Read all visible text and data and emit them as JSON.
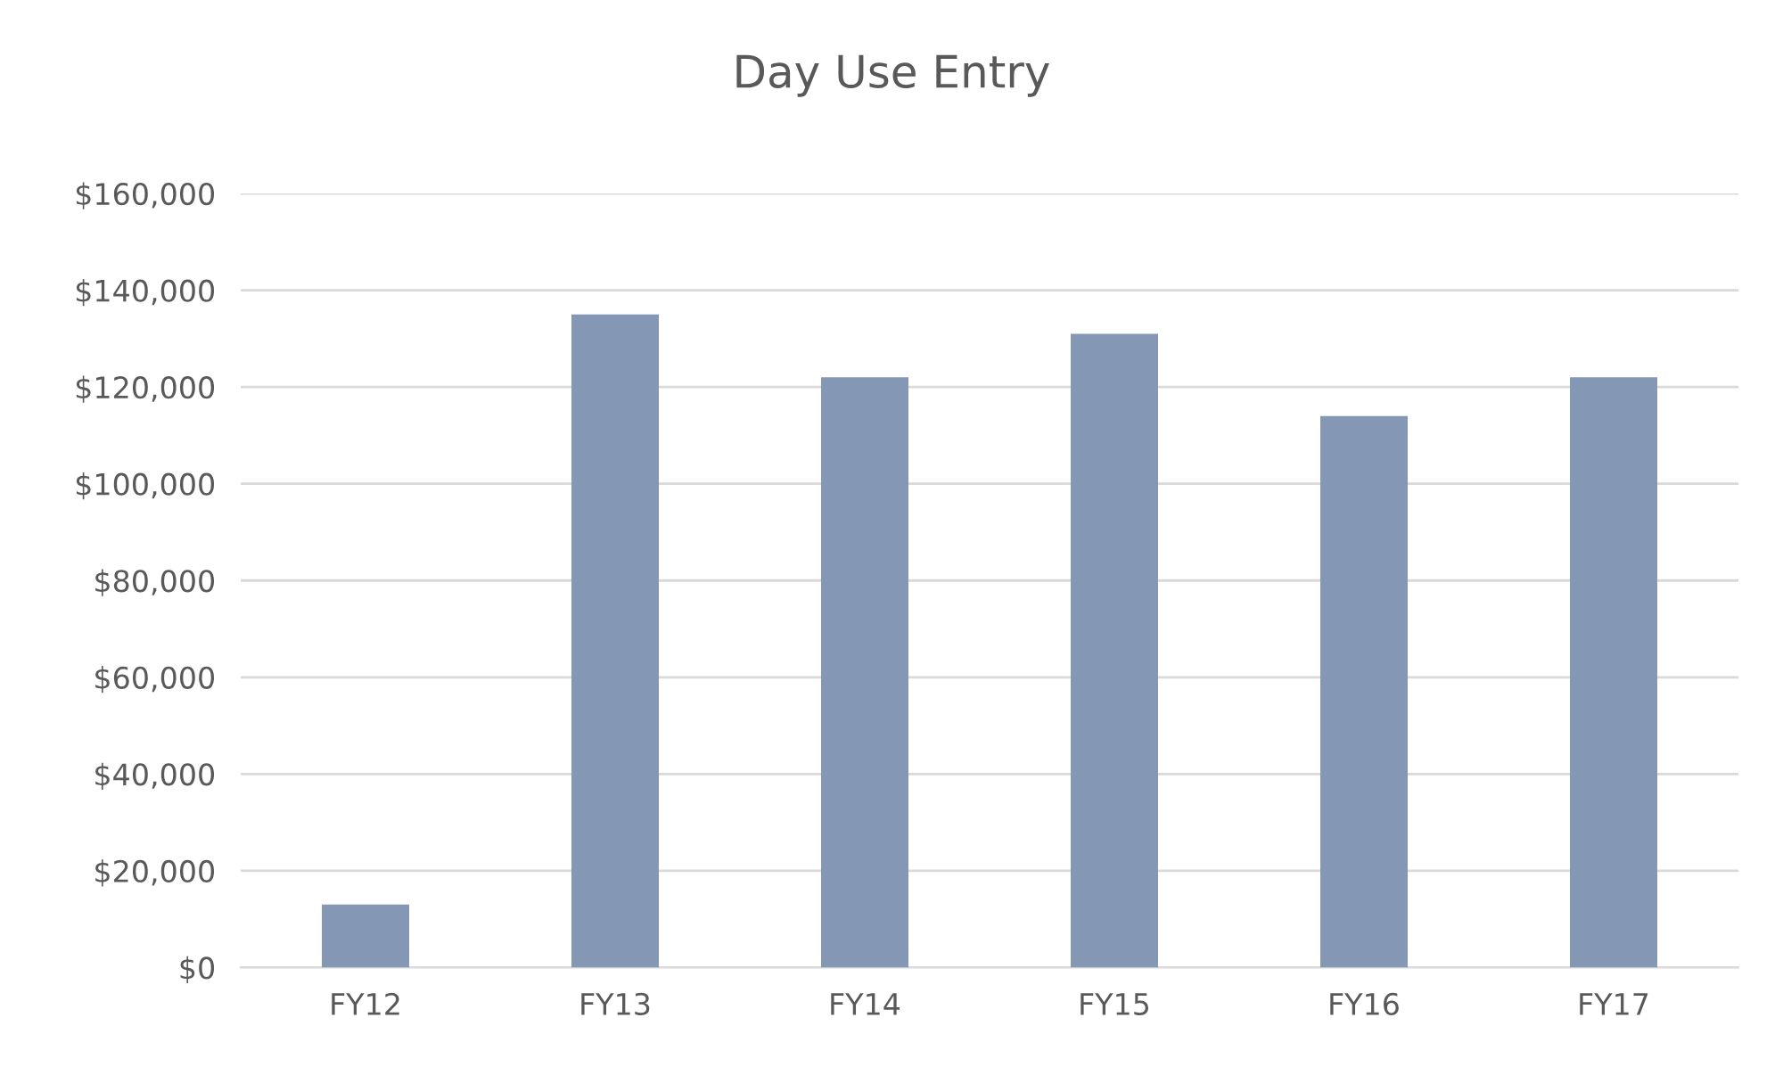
{
  "chart_data": {
    "type": "bar",
    "title": "Day Use Entry",
    "categories": [
      "FY12",
      "FY13",
      "FY14",
      "FY15",
      "FY16",
      "FY17"
    ],
    "values": [
      13000,
      135000,
      122000,
      131000,
      114000,
      122000
    ],
    "color": "#8497b5",
    "ylim": [
      0,
      160000
    ],
    "yticks": [
      {
        "value": 0,
        "label": "$0"
      },
      {
        "value": 20000,
        "label": "$20,000"
      },
      {
        "value": 40000,
        "label": "$40,000"
      },
      {
        "value": 60000,
        "label": "$60,000"
      },
      {
        "value": 80000,
        "label": "$80,000"
      },
      {
        "value": 100000,
        "label": "$100,000"
      },
      {
        "value": 120000,
        "label": "$120,000"
      },
      {
        "value": 140000,
        "label": "$140,000"
      },
      {
        "value": 160000,
        "label": "$160,000"
      }
    ],
    "grid": "y"
  }
}
